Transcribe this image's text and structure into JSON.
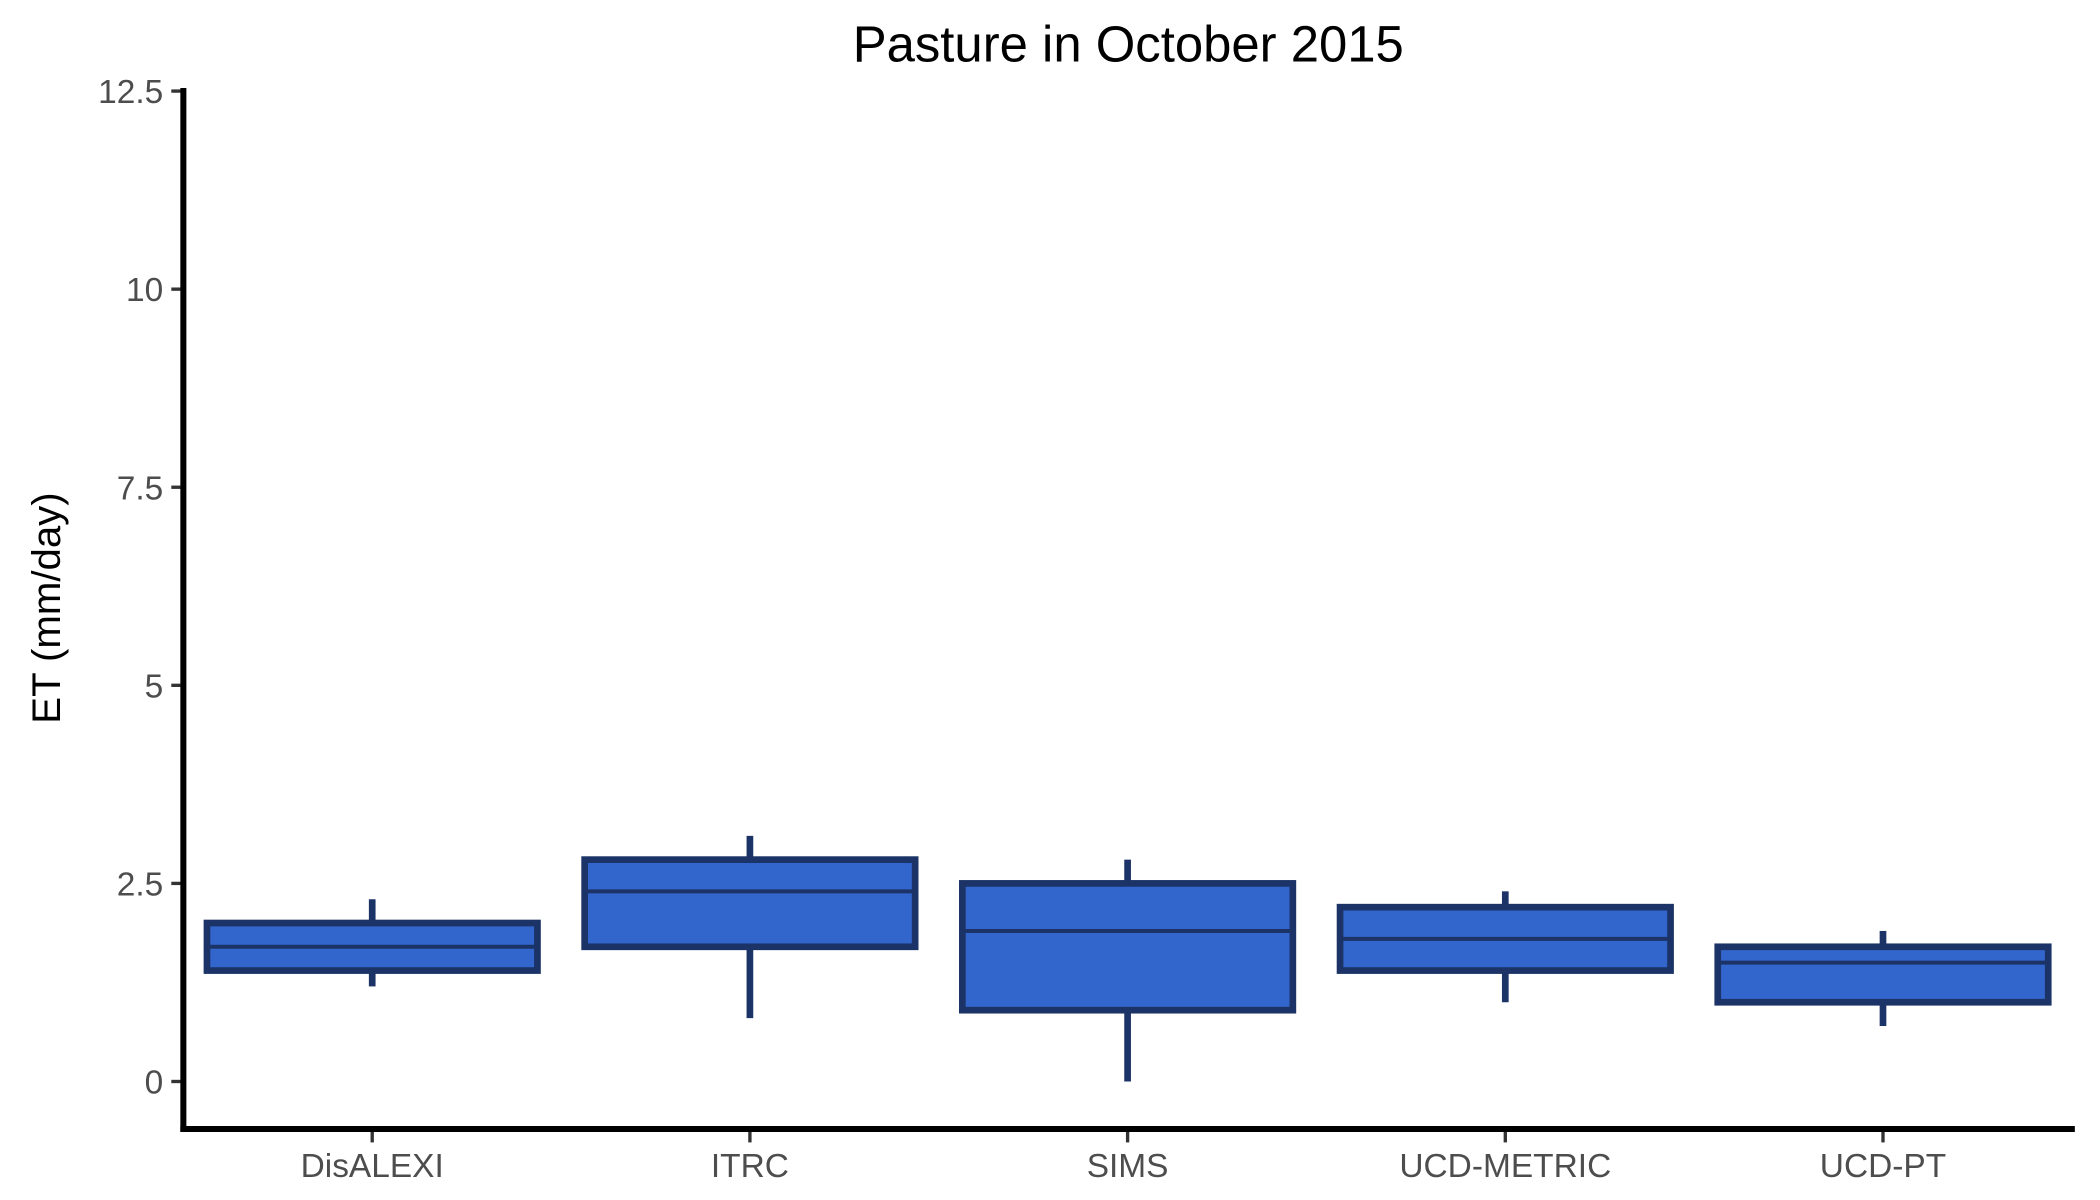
{
  "chart_data": {
    "type": "boxplot",
    "title": "Pasture in October 2015",
    "xlabel": "",
    "ylabel": "ET (mm/day)",
    "ylim": [
      -0.6,
      12.5
    ],
    "yticks": [
      "0",
      "2.5",
      "5",
      "7.5",
      "10",
      "12.5"
    ],
    "ytick_values": [
      0,
      2.5,
      5,
      7.5,
      10,
      12.5
    ],
    "grid": false,
    "colors": {
      "fill": "#3366cc",
      "stroke": "#1b3366"
    },
    "categories": [
      "DisALEXI",
      "ITRC",
      "SIMS",
      "UCD-METRIC",
      "UCD-PT"
    ],
    "boxes": [
      {
        "name": "DisALEXI",
        "min": 1.2,
        "q1": 1.4,
        "median": 1.7,
        "q3": 2.0,
        "max": 2.3
      },
      {
        "name": "ITRC",
        "min": 0.8,
        "q1": 1.7,
        "median": 2.4,
        "q3": 2.8,
        "max": 3.1
      },
      {
        "name": "SIMS",
        "min": 0.0,
        "q1": 0.9,
        "median": 1.9,
        "q3": 2.5,
        "max": 2.8
      },
      {
        "name": "UCD-METRIC",
        "min": 1.0,
        "q1": 1.4,
        "median": 1.8,
        "q3": 2.2,
        "max": 2.4
      },
      {
        "name": "UCD-PT",
        "min": 0.7,
        "q1": 1.0,
        "median": 1.5,
        "q3": 1.7,
        "max": 1.9
      }
    ]
  }
}
